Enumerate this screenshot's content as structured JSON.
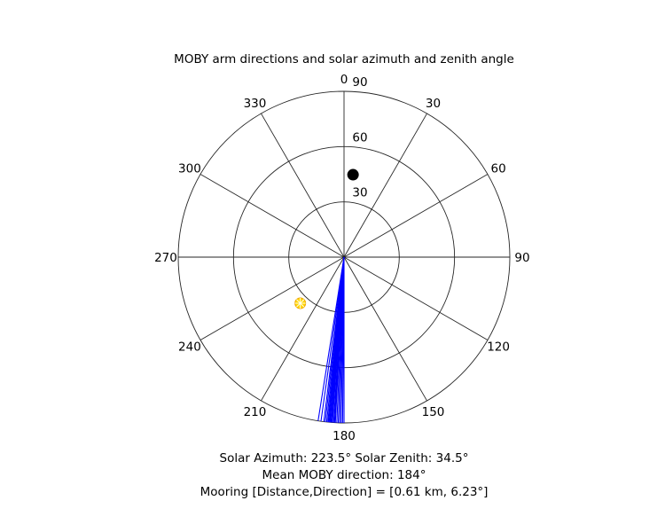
{
  "chart_data": {
    "type": "polar",
    "title": "MOBY arm directions and solar azimuth and zenith angle",
    "angle_ticks": [
      "0",
      "30",
      "60",
      "90",
      "120",
      "150",
      "180",
      "210",
      "240",
      "270",
      "300",
      "330"
    ],
    "radial_ticks": [
      "30",
      "60",
      "90"
    ],
    "radial_max": 90,
    "angular_orientation": "clockwise, 0 at top",
    "arm_direction_lines": {
      "color": "#0000ff",
      "angles_deg": [
        180,
        180.5,
        181,
        181.5,
        182,
        182.5,
        183,
        183.3,
        183.6,
        184,
        184.2,
        184.5,
        184.8,
        185,
        185.3,
        185.6,
        186,
        186.5,
        187,
        188,
        189
      ],
      "radius": 90
    },
    "markers": [
      {
        "name": "black-dot",
        "angle_deg": 6.23,
        "radius": 45,
        "color": "#000000"
      },
      {
        "name": "sun",
        "angle_deg": 223.5,
        "radius": 34.5,
        "color": "#ffd700"
      }
    ],
    "info_lines": [
      "Solar Azimuth: 223.5°    Solar Zenith: 34.5°",
      "Mean MOBY direction: 184°",
      "Mooring [Distance,Direction] = [0.61 km, 6.23°]"
    ]
  }
}
